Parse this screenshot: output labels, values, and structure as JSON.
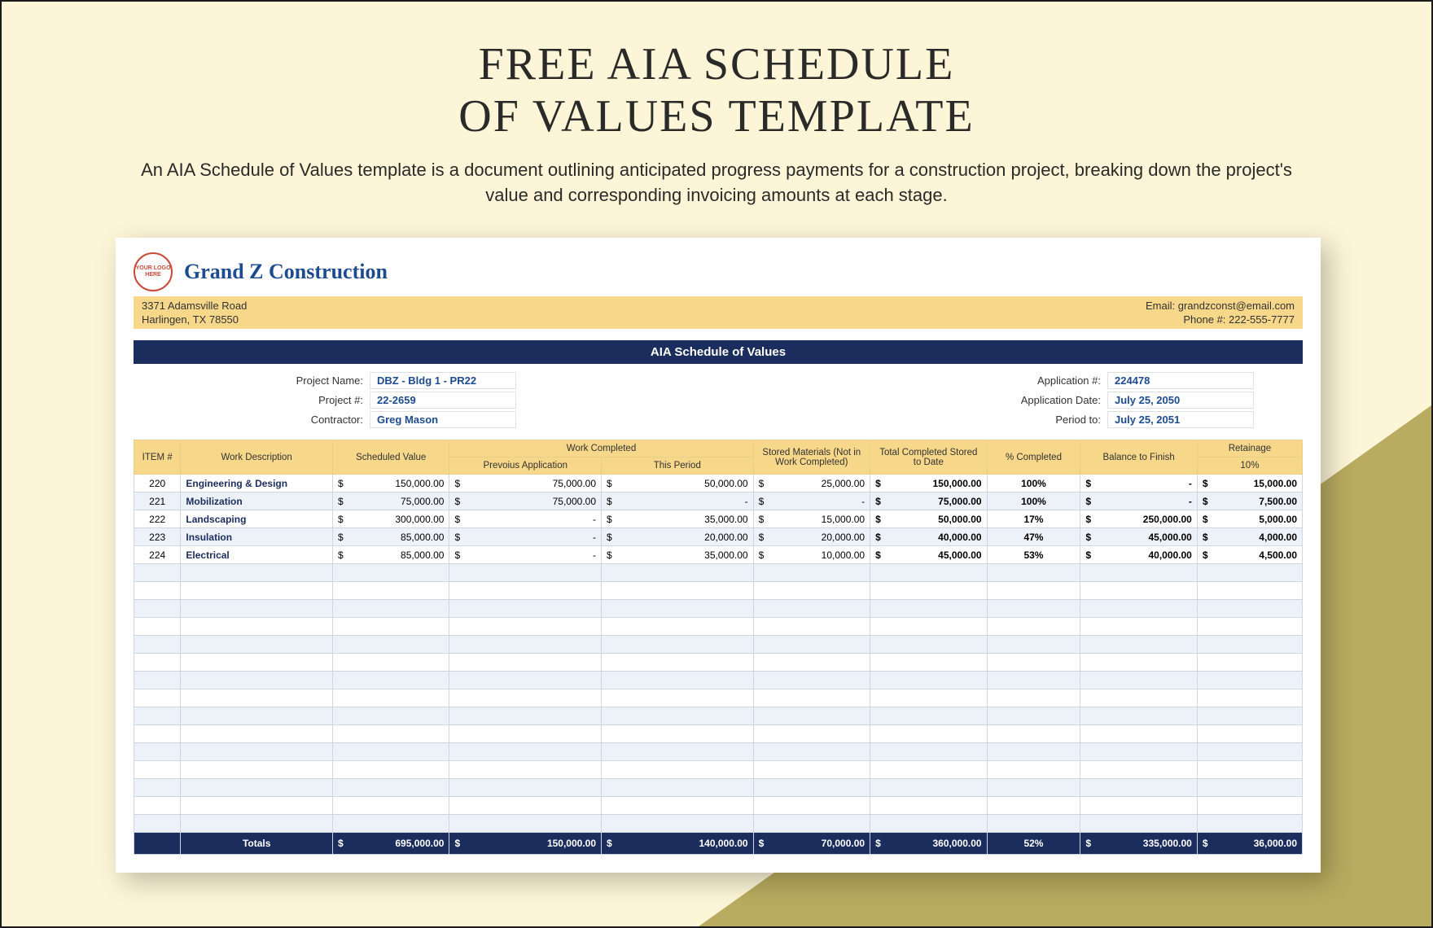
{
  "page": {
    "title_line1": "FREE AIA SCHEDULE",
    "title_line2": "OF VALUES TEMPLATE",
    "subtitle": "An AIA Schedule of Values template is a document outlining anticipated progress payments for a construction project, breaking down the project's value and corresponding invoicing amounts at each stage."
  },
  "company": {
    "logo_text": "YOUR LOGO HERE",
    "name": "Grand Z Construction",
    "address1": "3371 Adamsville Road",
    "address2": "Harlingen, TX 78550",
    "email_label": "Email: grandzconst@email.com",
    "phone_label": "Phone #: 222-555-7777"
  },
  "doc_title": "AIA Schedule of Values",
  "meta_left": [
    {
      "label": "Project Name:",
      "value": "DBZ - Bldg 1 - PR22"
    },
    {
      "label": "Project #:",
      "value": "22-2659"
    },
    {
      "label": "Contractor:",
      "value": "Greg Mason"
    }
  ],
  "meta_right": [
    {
      "label": "Application #:",
      "value": "224478"
    },
    {
      "label": "Application Date:",
      "value": "July 25, 2050"
    },
    {
      "label": "Period to:",
      "value": "July 25, 2051"
    }
  ],
  "headers": {
    "item": "ITEM #",
    "desc": "Work Description",
    "sched": "Scheduled Value",
    "work_completed": "Work Completed",
    "prev_app": "Prevoius Application",
    "this_period": "This Period",
    "stored_mat": "Stored Materials (Not in Work Completed)",
    "total_stored": "Total Completed Stored to Date",
    "pct": "% Completed",
    "balance": "Balance to Finish",
    "retainage": "Retainage",
    "retainage_pct": "10%"
  },
  "rows": [
    {
      "item": "220",
      "desc": "Engineering & Design",
      "sched": "150,000.00",
      "prev": "75,000.00",
      "period": "50,000.00",
      "stored": "25,000.00",
      "total": "150,000.00",
      "pct": "100%",
      "bal": "-",
      "ret": "15,000.00"
    },
    {
      "item": "221",
      "desc": "Mobilization",
      "sched": "75,000.00",
      "prev": "75,000.00",
      "period": "-",
      "stored": "-",
      "total": "75,000.00",
      "pct": "100%",
      "bal": "-",
      "ret": "7,500.00"
    },
    {
      "item": "222",
      "desc": "Landscaping",
      "sched": "300,000.00",
      "prev": "-",
      "period": "35,000.00",
      "stored": "15,000.00",
      "total": "50,000.00",
      "pct": "17%",
      "bal": "250,000.00",
      "ret": "5,000.00"
    },
    {
      "item": "223",
      "desc": "Insulation",
      "sched": "85,000.00",
      "prev": "-",
      "period": "20,000.00",
      "stored": "20,000.00",
      "total": "40,000.00",
      "pct": "47%",
      "bal": "45,000.00",
      "ret": "4,000.00"
    },
    {
      "item": "224",
      "desc": "Electrical",
      "sched": "85,000.00",
      "prev": "-",
      "period": "35,000.00",
      "stored": "10,000.00",
      "total": "45,000.00",
      "pct": "53%",
      "bal": "40,000.00",
      "ret": "4,500.00"
    }
  ],
  "totals": {
    "label": "Totals",
    "sched": "695,000.00",
    "prev": "150,000.00",
    "period": "140,000.00",
    "stored": "70,000.00",
    "total": "360,000.00",
    "pct": "52%",
    "bal": "335,000.00",
    "ret": "36,000.00"
  },
  "empty_row_count": 15,
  "colors": {
    "page_bg": "#fdf5d7",
    "triangle": "#b9ab5f",
    "header_cream": "#f7d78a",
    "dark_blue": "#1b2d5c",
    "link_blue": "#1d4b8f",
    "row_alt": "#edf2f9"
  }
}
